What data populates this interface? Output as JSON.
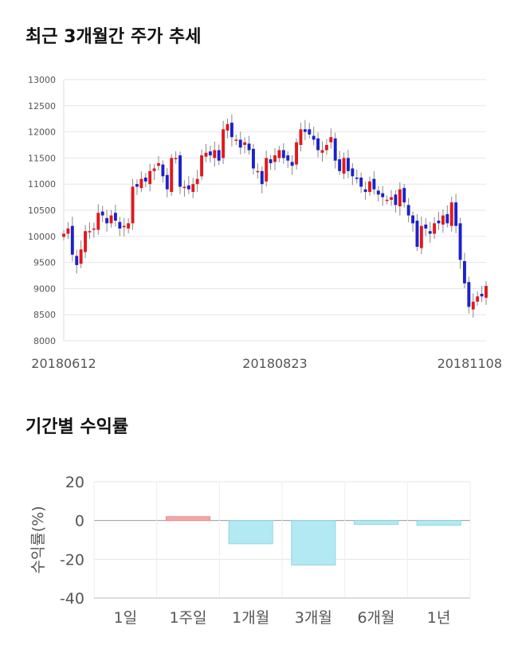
{
  "sections": {
    "price_title": "최근 3개월간 주가 추세",
    "returns_title": "기간별 수익률"
  },
  "colors": {
    "up": "#e2181c",
    "down": "#1a22c9",
    "bar_positive": "#f4a6a8",
    "bar_negative": "#b3e9f2",
    "grid": "#e6e6e6"
  },
  "chart_data": [
    {
      "type": "candlestick",
      "title": "최근 3개월간 주가 추세",
      "x_tick_labels": [
        "20180612",
        "20180823",
        "20181108"
      ],
      "x_tick_indices": [
        0,
        49,
        98
      ],
      "y_ticks": [
        8000,
        8500,
        9000,
        9500,
        10000,
        10500,
        11000,
        11500,
        12000,
        12500,
        13000
      ],
      "ylim": [
        8000,
        13000
      ],
      "grid": true,
      "closes": [
        10050,
        10150,
        9650,
        9450,
        9750,
        10100,
        10100,
        10150,
        10450,
        10400,
        10250,
        10400,
        10300,
        10150,
        10200,
        10250,
        10950,
        10950,
        11100,
        11050,
        11250,
        11300,
        11400,
        11150,
        10900,
        11500,
        11500,
        10950,
        10950,
        10900,
        11000,
        11100,
        11550,
        11600,
        11550,
        11650,
        11450,
        12050,
        12150,
        11900,
        11850,
        11700,
        11800,
        11650,
        11300,
        11250,
        11000,
        11500,
        11400,
        11550,
        11650,
        11500,
        11450,
        11350,
        11800,
        12050,
        12000,
        11950,
        11850,
        11650,
        11650,
        11750,
        11900,
        11450,
        11250,
        11500,
        11250,
        11150,
        11100,
        10950,
        10850,
        11050,
        10900,
        10800,
        10750,
        10700,
        10750,
        10600,
        10900,
        10650,
        10400,
        10250,
        9800,
        10200,
        10150,
        10050,
        10250,
        10250,
        10400,
        10250,
        10650,
        10200,
        9550,
        9100,
        8650,
        8750,
        8850,
        8850,
        9050
      ]
    },
    {
      "type": "bar",
      "title": "기간별 수익률",
      "ylabel": "수익률(%)",
      "categories": [
        "1일",
        "1주일",
        "1개월",
        "3개월",
        "6개월",
        "1년"
      ],
      "values": [
        0,
        2,
        -12,
        -23,
        -2,
        -2.5
      ],
      "yticks": [
        20,
        0,
        -20,
        -40
      ],
      "ylim": [
        -40,
        20
      ],
      "grid": true
    }
  ]
}
